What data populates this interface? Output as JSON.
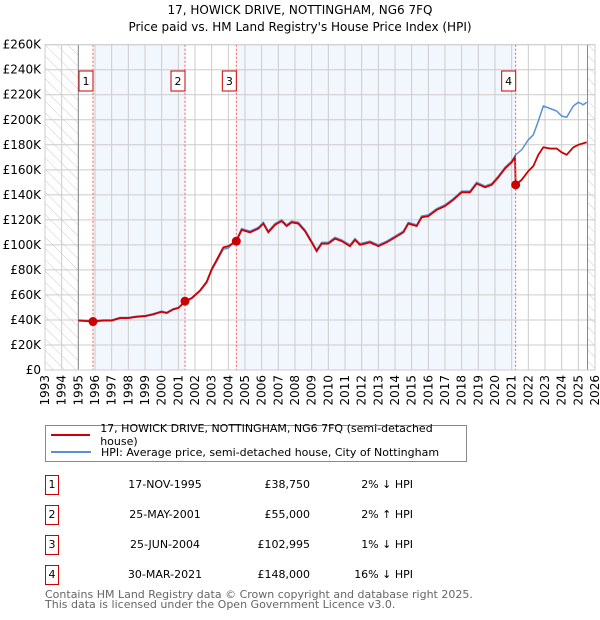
{
  "chart_data": {
    "type": "line",
    "title": "17, HOWICK DRIVE, NOTTINGHAM, NG6 7FQ",
    "subtitle": "Price paid vs. HM Land Registry's House Price Index (HPI)",
    "xlim": [
      1993,
      2026
    ],
    "ylim": [
      0,
      260000
    ],
    "yticks": [
      0,
      20000,
      40000,
      60000,
      80000,
      100000,
      120000,
      140000,
      160000,
      180000,
      200000,
      220000,
      240000,
      260000
    ],
    "ytick_labels": [
      "£0",
      "£20K",
      "£40K",
      "£60K",
      "£80K",
      "£100K",
      "£120K",
      "£140K",
      "£160K",
      "£180K",
      "£200K",
      "£220K",
      "£240K",
      "£260K"
    ],
    "xticks": [
      1993,
      1994,
      1995,
      1996,
      1997,
      1998,
      1999,
      2000,
      2001,
      2002,
      2003,
      2004,
      2005,
      2006,
      2007,
      2008,
      2009,
      2010,
      2011,
      2012,
      2013,
      2014,
      2015,
      2016,
      2017,
      2018,
      2019,
      2020,
      2021,
      2022,
      2023,
      2024,
      2025,
      2026
    ],
    "grid": true,
    "data_range": [
      1995,
      2025.55
    ],
    "series": [
      {
        "name": "17, HOWICK DRIVE, NOTTINGHAM, NG6 7FQ (semi-detached house)",
        "color": "#cc0000",
        "points": [
          [
            1995,
            39.5
          ],
          [
            1995.88,
            38.75
          ],
          [
            1996.5,
            39.5
          ],
          [
            1997,
            39.5
          ],
          [
            1997.5,
            41.5
          ],
          [
            1998,
            41.5
          ],
          [
            1998.5,
            42.5
          ],
          [
            1999,
            43
          ],
          [
            1999.5,
            44.5
          ],
          [
            2000,
            46.5
          ],
          [
            2000.3,
            45.5
          ],
          [
            2000.7,
            48.5
          ],
          [
            2001,
            49.5
          ],
          [
            2001.4,
            55
          ],
          [
            2001.8,
            57.5
          ],
          [
            2002.3,
            63.5
          ],
          [
            2002.7,
            70.5
          ],
          [
            2003,
            80.5
          ],
          [
            2003.4,
            90.5
          ],
          [
            2003.7,
            98
          ],
          [
            2004,
            99
          ],
          [
            2004.48,
            103
          ],
          [
            2004.8,
            112
          ],
          [
            2005.3,
            110
          ],
          [
            2005.8,
            113
          ],
          [
            2006.1,
            117
          ],
          [
            2006.4,
            110
          ],
          [
            2006.8,
            116
          ],
          [
            2007.2,
            119
          ],
          [
            2007.5,
            115
          ],
          [
            2007.8,
            118
          ],
          [
            2008.2,
            117
          ],
          [
            2008.6,
            111
          ],
          [
            2009,
            102
          ],
          [
            2009.3,
            95
          ],
          [
            2009.6,
            101
          ],
          [
            2010,
            101
          ],
          [
            2010.4,
            105
          ],
          [
            2010.8,
            103
          ],
          [
            2011.3,
            99
          ],
          [
            2011.6,
            104
          ],
          [
            2011.9,
            100
          ],
          [
            2012.5,
            102
          ],
          [
            2013,
            99
          ],
          [
            2013.5,
            102
          ],
          [
            2014,
            106
          ],
          [
            2014.5,
            110
          ],
          [
            2014.8,
            117
          ],
          [
            2015.3,
            115
          ],
          [
            2015.6,
            122
          ],
          [
            2016,
            123
          ],
          [
            2016.5,
            128
          ],
          [
            2017,
            131
          ],
          [
            2017.5,
            136
          ],
          [
            2018,
            142
          ],
          [
            2018.5,
            142
          ],
          [
            2018.9,
            149
          ],
          [
            2019.4,
            146
          ],
          [
            2019.8,
            148
          ],
          [
            2020.2,
            154
          ],
          [
            2020.6,
            161
          ],
          [
            2021.0,
            166
          ],
          [
            2021.2,
            170
          ],
          [
            2021.24,
            148
          ],
          [
            2021.6,
            152
          ],
          [
            2022,
            159
          ],
          [
            2022.3,
            163
          ],
          [
            2022.6,
            172
          ],
          [
            2022.9,
            178
          ],
          [
            2023.3,
            177
          ],
          [
            2023.7,
            177
          ],
          [
            2024,
            174
          ],
          [
            2024.3,
            172
          ],
          [
            2024.7,
            178
          ],
          [
            2025,
            180
          ],
          [
            2025.5,
            182
          ]
        ]
      },
      {
        "name": "HPI: Average price, semi-detached house, City of Nottingham",
        "color": "#5b8fd6",
        "points": [
          [
            1995,
            40
          ],
          [
            1995.88,
            39.5
          ],
          [
            1996.5,
            40
          ],
          [
            1997,
            40
          ],
          [
            1997.5,
            42
          ],
          [
            1998,
            42
          ],
          [
            1998.5,
            43
          ],
          [
            1999,
            43.5
          ],
          [
            1999.5,
            45
          ],
          [
            2000,
            47
          ],
          [
            2000.3,
            46
          ],
          [
            2000.7,
            49
          ],
          [
            2001,
            50
          ],
          [
            2001.4,
            54
          ],
          [
            2001.8,
            57
          ],
          [
            2002.3,
            63
          ],
          [
            2002.7,
            69.5
          ],
          [
            2003,
            79.5
          ],
          [
            2003.4,
            89
          ],
          [
            2003.7,
            96.5
          ],
          [
            2004,
            97.5
          ],
          [
            2004.48,
            104
          ],
          [
            2004.8,
            113
          ],
          [
            2005.3,
            111
          ],
          [
            2005.8,
            114
          ],
          [
            2006.1,
            118
          ],
          [
            2006.4,
            111
          ],
          [
            2006.8,
            117
          ],
          [
            2007.2,
            120
          ],
          [
            2007.5,
            116
          ],
          [
            2007.8,
            119
          ],
          [
            2008.2,
            118
          ],
          [
            2008.6,
            112
          ],
          [
            2009,
            103
          ],
          [
            2009.3,
            96
          ],
          [
            2009.6,
            102
          ],
          [
            2010,
            102
          ],
          [
            2010.4,
            106
          ],
          [
            2010.8,
            104
          ],
          [
            2011.3,
            100
          ],
          [
            2011.6,
            105
          ],
          [
            2011.9,
            101
          ],
          [
            2012.5,
            103
          ],
          [
            2013,
            100
          ],
          [
            2013.5,
            103
          ],
          [
            2014,
            107
          ],
          [
            2014.5,
            111
          ],
          [
            2014.8,
            118
          ],
          [
            2015.3,
            116
          ],
          [
            2015.6,
            123
          ],
          [
            2016,
            124
          ],
          [
            2016.5,
            129
          ],
          [
            2017,
            132
          ],
          [
            2017.5,
            137
          ],
          [
            2018,
            143
          ],
          [
            2018.5,
            143
          ],
          [
            2018.9,
            150
          ],
          [
            2019.4,
            147
          ],
          [
            2019.8,
            149
          ],
          [
            2020.2,
            155
          ],
          [
            2020.6,
            162
          ],
          [
            2021.0,
            167
          ],
          [
            2021.24,
            172
          ],
          [
            2021.6,
            176
          ],
          [
            2022,
            184
          ],
          [
            2022.3,
            188
          ],
          [
            2022.6,
            199
          ],
          [
            2022.9,
            211
          ],
          [
            2023.3,
            209
          ],
          [
            2023.7,
            207
          ],
          [
            2024,
            203
          ],
          [
            2024.3,
            202
          ],
          [
            2024.7,
            211
          ],
          [
            2025,
            214
          ],
          [
            2025.3,
            212
          ],
          [
            2025.5,
            214
          ]
        ]
      }
    ],
    "sales": [
      {
        "num": "1",
        "x": 1995.88,
        "value": 38750,
        "date": "17-NOV-1995",
        "price": "£38,750",
        "hpi": "2% ↓ HPI"
      },
      {
        "num": "2",
        "x": 2001.4,
        "value": 55000,
        "date": "25-MAY-2001",
        "price": "£55,000",
        "hpi": "2% ↑ HPI"
      },
      {
        "num": "3",
        "x": 2004.48,
        "value": 102995,
        "date": "25-JUN-2004",
        "price": "£102,995",
        "hpi": "1% ↓ HPI"
      },
      {
        "num": "4",
        "x": 2021.24,
        "value": 148000,
        "date": "30-MAR-2021",
        "price": "£148,000",
        "hpi": "16% ↓ HPI"
      }
    ]
  },
  "legend": {
    "line1": "17, HOWICK DRIVE, NOTTINGHAM, NG6 7FQ (semi-detached house)",
    "line2": "HPI: Average price, semi-detached house, City of Nottingham"
  },
  "footer": {
    "line1": "Contains HM Land Registry data © Crown copyright and database right 2025.",
    "line2": "This data is licensed under the Open Government Licence v3.0."
  }
}
